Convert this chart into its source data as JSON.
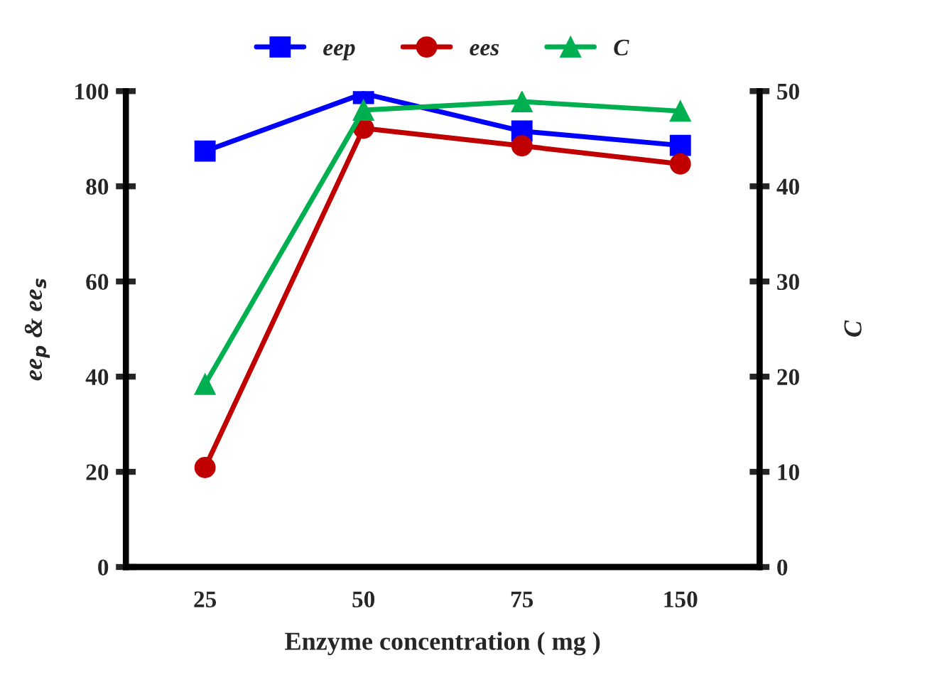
{
  "chart_data": {
    "type": "line",
    "categories": [
      "25",
      "50",
      "75",
      "150"
    ],
    "xlabel": "Enzyme concentration ( mg )",
    "ylabel": "ee$_{p}$ & ee$_{s}$",
    "y2label": "C",
    "ylim": [
      0,
      100
    ],
    "yticks": [
      0,
      20,
      40,
      60,
      80,
      100
    ],
    "y2lim": [
      0,
      50
    ],
    "y2ticks": [
      0,
      10,
      20,
      30,
      40,
      50
    ],
    "legend": "top",
    "grid": false,
    "series": [
      {
        "name": "eep",
        "color": "#0000ff",
        "marker": "square",
        "values": [
          87.4,
          99.5,
          91.6,
          88.6
        ]
      },
      {
        "name": "ees",
        "color": "#c00000",
        "marker": "circle",
        "values": [
          20.9,
          92.2,
          88.5,
          84.7
        ]
      },
      {
        "name": "C",
        "color": "#00b050",
        "marker": "triangle",
        "axis": "y2",
        "values": [
          19.2,
          48.0,
          48.9,
          47.9
        ]
      }
    ]
  }
}
